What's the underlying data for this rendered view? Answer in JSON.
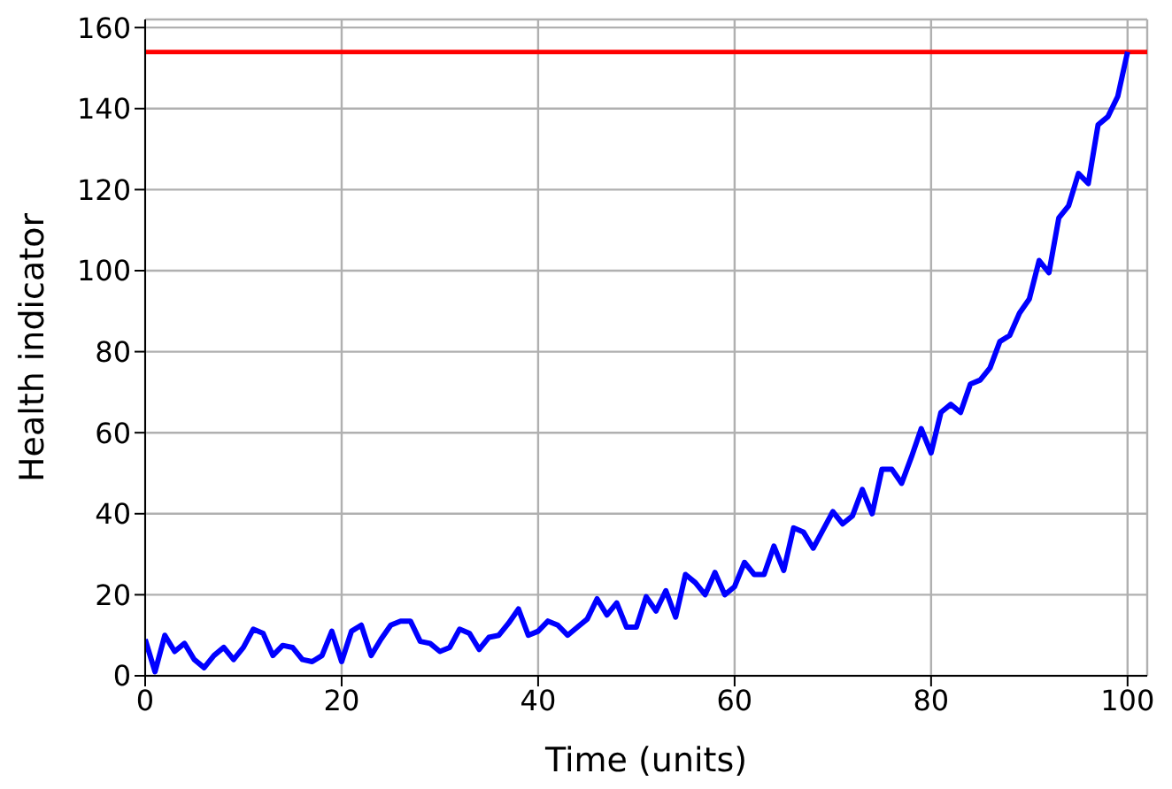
{
  "chart_data": {
    "type": "line",
    "xlabel": "Time (units)",
    "ylabel": "Health indicator",
    "xlim": [
      0,
      102
    ],
    "ylim": [
      0,
      162
    ],
    "xticks": [
      0,
      20,
      40,
      60,
      80,
      100
    ],
    "yticks": [
      0,
      20,
      40,
      60,
      80,
      100,
      120,
      140,
      160
    ],
    "grid": true,
    "legend": false,
    "marker": "none",
    "line_style": "solid",
    "x": [
      0,
      1,
      2,
      3,
      4,
      5,
      6,
      7,
      8,
      9,
      10,
      11,
      12,
      13,
      14,
      15,
      16,
      17,
      18,
      19,
      20,
      21,
      22,
      23,
      24,
      25,
      26,
      27,
      28,
      29,
      30,
      31,
      32,
      33,
      34,
      35,
      36,
      37,
      38,
      39,
      40,
      41,
      42,
      43,
      44,
      45,
      46,
      47,
      48,
      49,
      50,
      51,
      52,
      53,
      54,
      55,
      56,
      57,
      58,
      59,
      60,
      61,
      62,
      63,
      64,
      65,
      66,
      67,
      68,
      69,
      70,
      71,
      72,
      73,
      74,
      75,
      76,
      77,
      78,
      79,
      80,
      81,
      82,
      83,
      84,
      85,
      86,
      87,
      88,
      89,
      90,
      91,
      92,
      93,
      94,
      95,
      96,
      97,
      98,
      99,
      100
    ],
    "series": [
      {
        "color": "#0000ff",
        "values": [
          9,
          1,
          10,
          6,
          8,
          4,
          2,
          5,
          7,
          4,
          7,
          11.5,
          10.5,
          5,
          7.5,
          7,
          4,
          3.5,
          5,
          11,
          3.5,
          11,
          12.5,
          5,
          9,
          12.5,
          13.5,
          13.5,
          8.5,
          8,
          6,
          7,
          11.5,
          10.5,
          6.5,
          9.5,
          10,
          13,
          16.5,
          10,
          11,
          13.5,
          12.5,
          10,
          12,
          14,
          19,
          15,
          18,
          12,
          12,
          19.5,
          16,
          21,
          14.5,
          25,
          23,
          20,
          25.5,
          20,
          22,
          28,
          25,
          25,
          32,
          26,
          36.5,
          35.5,
          31.5,
          36,
          40.5,
          37.5,
          39.5,
          46,
          40,
          51,
          51,
          47.5,
          54,
          61,
          55,
          65,
          67,
          65,
          72,
          73,
          76,
          82.5,
          84,
          89.5,
          93,
          102.5,
          99.5,
          113,
          116,
          124,
          121.5,
          136,
          138,
          143,
          154
        ]
      }
    ],
    "ref_lines": [
      {
        "axis": "y",
        "value": 154,
        "color": "#ff0000"
      }
    ]
  }
}
